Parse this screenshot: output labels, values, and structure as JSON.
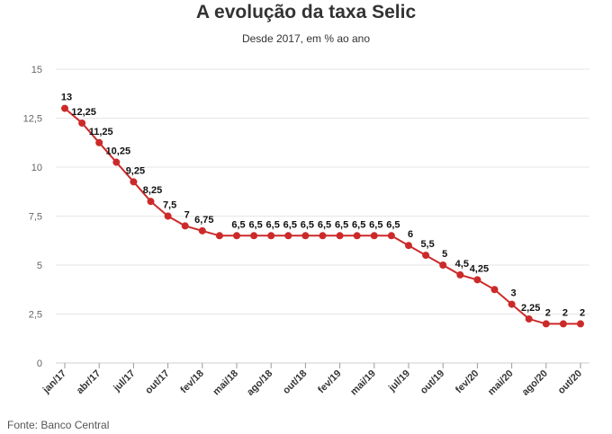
{
  "title": "A evolução da taxa Selic",
  "subtitle": "Desde 2017, em % ao ano",
  "source": "Fonte: Banco Central",
  "colors": {
    "line": "#cc2a2a",
    "grid": "#e6e6e6",
    "axis": "#555555"
  },
  "chart_data": {
    "type": "line",
    "title": "A evolução da taxa Selic",
    "subtitle": "Desde 2017, em % ao ano",
    "ylim": [
      0,
      15
    ],
    "yticks": [
      0,
      2.5,
      5,
      7.5,
      10,
      12.5,
      15
    ],
    "ytick_labels": [
      "0",
      "2,5",
      "5",
      "7,5",
      "10",
      "12,5",
      "15"
    ],
    "xtick_labels": [
      "jan/17",
      "abr/17",
      "jul/17",
      "out/17",
      "fev/18",
      "mai/18",
      "ago/18",
      "out/18",
      "fev/19",
      "mai/19",
      "jul/19",
      "out/19",
      "fev/20",
      "mai/20",
      "ago/20",
      "out/20"
    ],
    "xtick_positions": [
      0,
      1,
      2,
      3,
      4,
      5,
      6,
      7,
      8,
      9,
      10,
      11,
      12,
      13,
      14,
      15
    ],
    "grid": true,
    "legend": "none",
    "series": [
      {
        "values": [
          13,
          12.25,
          11.25,
          10.25,
          9.25,
          8.25,
          7.5,
          7,
          6.75,
          6.5,
          6.5,
          6.5,
          6.5,
          6.5,
          6.5,
          6.5,
          6.5,
          6.5,
          6.5,
          6.5,
          6,
          5.5,
          5,
          4.5,
          4.25,
          3.75,
          3,
          2.25,
          2,
          2,
          2
        ],
        "labels": [
          "13",
          "12,25",
          "11,25",
          "10,25",
          "9,25",
          "8,25",
          "7,5",
          "7",
          "6,75",
          "",
          "6,5",
          "6,5",
          "6,5",
          "6,5",
          "6,5",
          "6,5",
          "6,5",
          "6,5",
          "6,5",
          "6,5",
          "6",
          "5,5",
          "5",
          "4,5",
          "4,25",
          "",
          "3",
          "2,25",
          "2",
          "2",
          "2"
        ]
      }
    ]
  }
}
